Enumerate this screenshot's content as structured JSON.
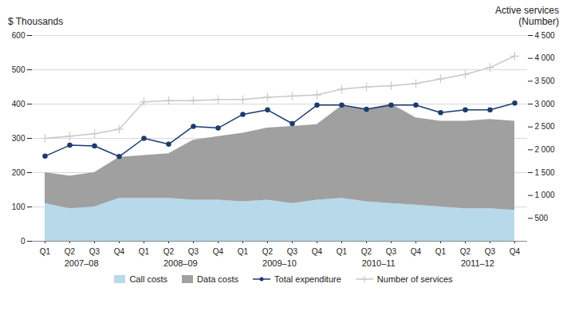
{
  "chart_data": {
    "type": "combo",
    "stacked": true,
    "categories": [
      "Q1",
      "Q2",
      "Q3",
      "Q4",
      "Q1",
      "Q2",
      "Q3",
      "Q4",
      "Q1",
      "Q2",
      "Q3",
      "Q4",
      "Q1",
      "Q2",
      "Q3",
      "Q4",
      "Q1",
      "Q2",
      "Q3",
      "Q4"
    ],
    "x_groups": [
      "2007–08",
      "2008–09",
      "2009–10",
      "2010–11",
      "2011–12"
    ],
    "ylabel": "$ Thousands",
    "y2label": "Active services\n(Number)",
    "ylim": [
      0,
      600
    ],
    "yticks": [
      0,
      100,
      200,
      300,
      400,
      500,
      600
    ],
    "y2lim": [
      0,
      4500
    ],
    "y2ticks": [
      500,
      {
        "value": 1000,
        "label": "1 000"
      },
      {
        "value": 1500,
        "label": "1 500"
      },
      {
        "value": 2000,
        "label": "2 000"
      },
      {
        "value": 2500,
        "label": "2 500"
      },
      {
        "value": 3000,
        "label": "3 000"
      },
      {
        "value": 3500,
        "label": "3 500"
      },
      {
        "value": 4000,
        "label": "4 000"
      },
      {
        "value": 4500,
        "label": "4 500"
      }
    ],
    "grid": true,
    "legend": "bottom",
    "series": [
      {
        "name": "Call costs",
        "type": "area",
        "color": "#b8d9ea",
        "values": [
          110,
          95,
          100,
          125,
          125,
          125,
          120,
          120,
          115,
          120,
          110,
          120,
          125,
          115,
          110,
          105,
          100,
          95,
          95,
          90
        ]
      },
      {
        "name": "Data costs",
        "type": "area",
        "color": "#a0a0a0",
        "values": [
          90,
          95,
          100,
          120,
          125,
          130,
          175,
          185,
          200,
          210,
          225,
          220,
          270,
          270,
          290,
          255,
          250,
          255,
          260,
          260
        ]
      },
      {
        "name": "Total expenditure",
        "type": "line",
        "marker": "circle",
        "color": "#1b3c6e",
        "values": [
          248,
          280,
          278,
          247,
          300,
          283,
          335,
          330,
          370,
          383,
          343,
          397,
          397,
          385,
          397,
          397,
          375,
          383,
          383,
          403
        ]
      },
      {
        "name": "Number of services",
        "type": "line",
        "marker": "plus",
        "axis": "y2",
        "color": "#c8c8c8",
        "values": [
          2250,
          2300,
          2350,
          2450,
          3050,
          3075,
          3075,
          3100,
          3100,
          3150,
          3175,
          3200,
          3325,
          3375,
          3400,
          3450,
          3550,
          3650,
          3800,
          4050
        ]
      }
    ]
  }
}
